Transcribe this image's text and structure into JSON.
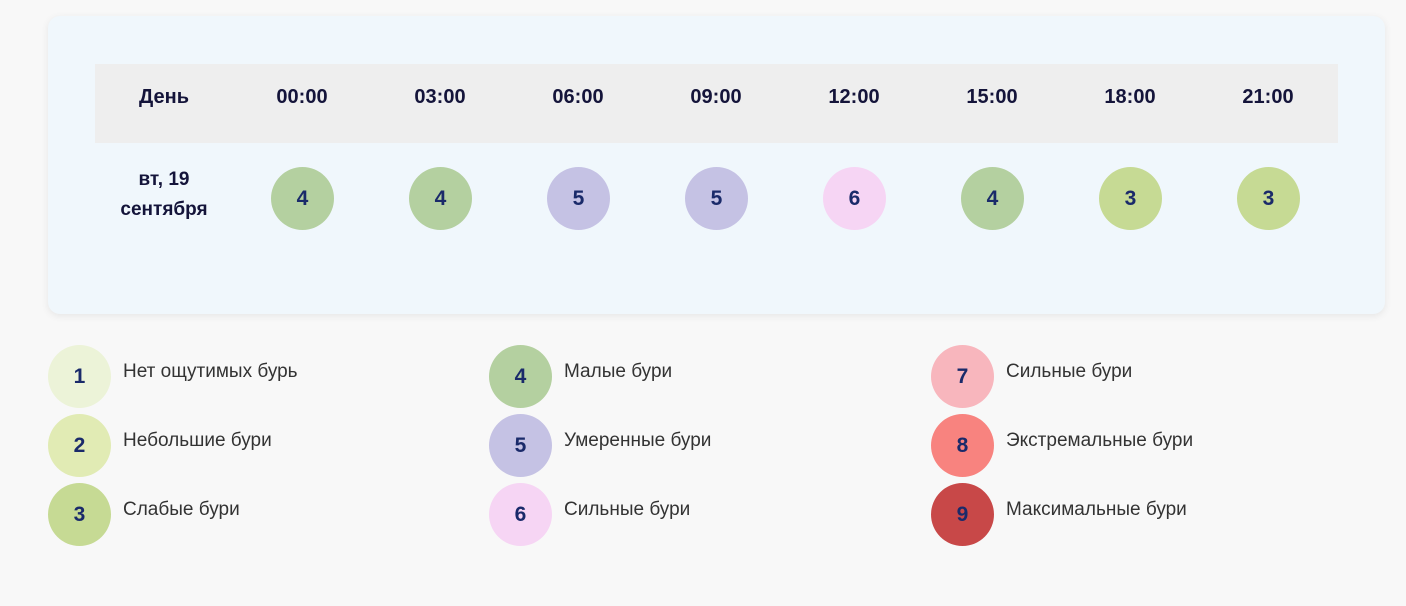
{
  "table": {
    "header": [
      "День",
      "00:00",
      "03:00",
      "06:00",
      "09:00",
      "12:00",
      "15:00",
      "18:00",
      "21:00"
    ],
    "row": {
      "day_line1": "вт, 19",
      "day_line2": "сентября",
      "values": [
        "4",
        "4",
        "5",
        "5",
        "6",
        "4",
        "3",
        "3"
      ]
    }
  },
  "level_colors": {
    "1": "#ecf3d8",
    "2": "#e1ebb4",
    "3": "#c6da94",
    "4": "#b4d0a0",
    "5": "#c5c2e4",
    "6": "#f6d5f4",
    "7": "#f8b6bd",
    "8": "#f8837f",
    "9": "#c84848"
  },
  "legend": [
    {
      "level": "1",
      "label": "Нет ощутимых бурь"
    },
    {
      "level": "2",
      "label": "Небольшие бури"
    },
    {
      "level": "3",
      "label": "Слабые бури"
    },
    {
      "level": "4",
      "label": "Малые бури"
    },
    {
      "level": "5",
      "label": "Умеренные бури"
    },
    {
      "level": "6",
      "label": "Сильные бури"
    },
    {
      "level": "7",
      "label": "Сильные бури"
    },
    {
      "level": "8",
      "label": "Экстремальные бури"
    },
    {
      "level": "9",
      "label": "Максимальные бури"
    }
  ]
}
